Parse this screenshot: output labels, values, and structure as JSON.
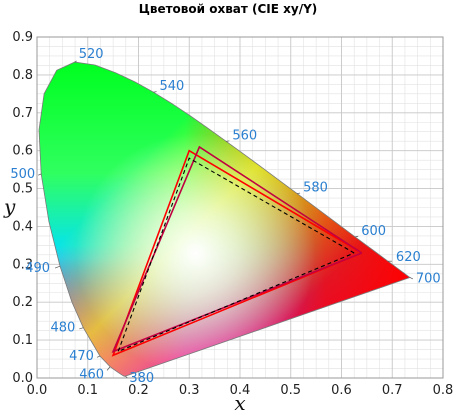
{
  "chart_data": {
    "type": "scatter",
    "title": "Цветовой охват (CIE xy/Y)",
    "xlabel": "x",
    "ylabel": "y",
    "xlim": [
      0.0,
      0.8
    ],
    "ylim": [
      0.0,
      0.9
    ],
    "grid": true,
    "x_ticks": [
      "0.0",
      "0.1",
      "0.2",
      "0.3",
      "0.4",
      "0.5",
      "0.6",
      "0.7",
      "0.8"
    ],
    "y_ticks": [
      "0.0",
      "0.1",
      "0.2",
      "0.3",
      "0.4",
      "0.5",
      "0.6",
      "0.7",
      "0.8",
      "0.9"
    ],
    "spectral_locus": {
      "x": [
        0.1741,
        0.1738,
        0.1736,
        0.1733,
        0.1726,
        0.1714,
        0.1689,
        0.1644,
        0.1566,
        0.144,
        0.1241,
        0.0913,
        0.0687,
        0.0454,
        0.0235,
        0.0082,
        0.0039,
        0.0139,
        0.0389,
        0.0743,
        0.1142,
        0.1547,
        0.1929,
        0.2296,
        0.2658,
        0.3016,
        0.3373,
        0.3731,
        0.4087,
        0.4441,
        0.4788,
        0.5125,
        0.5448,
        0.5752,
        0.6029,
        0.627,
        0.6482,
        0.6658,
        0.6801,
        0.6915,
        0.7006,
        0.7079,
        0.714,
        0.719,
        0.723,
        0.726,
        0.7347
      ],
      "y": [
        0.005,
        0.0049,
        0.0049,
        0.0048,
        0.0048,
        0.0051,
        0.0069,
        0.0109,
        0.0177,
        0.0297,
        0.0578,
        0.1327,
        0.2007,
        0.295,
        0.4127,
        0.5384,
        0.6548,
        0.7502,
        0.812,
        0.8338,
        0.8262,
        0.8059,
        0.7816,
        0.7543,
        0.7243,
        0.6923,
        0.6589,
        0.6245,
        0.5896,
        0.5547,
        0.5202,
        0.4866,
        0.4544,
        0.4242,
        0.3965,
        0.3725,
        0.3514,
        0.334,
        0.3197,
        0.3083,
        0.2993,
        0.292,
        0.2859,
        0.2809,
        0.277,
        0.274,
        0.2653
      ]
    },
    "wavelength_labels": [
      {
        "label": "380",
        "x": 0.1741,
        "y": 0.005
      },
      {
        "label": "460",
        "x": 0.144,
        "y": 0.0297
      },
      {
        "label": "470",
        "x": 0.1241,
        "y": 0.0578
      },
      {
        "label": "480",
        "x": 0.0913,
        "y": 0.1327
      },
      {
        "label": "490",
        "x": 0.0454,
        "y": 0.295
      },
      {
        "label": "500",
        "x": 0.0082,
        "y": 0.5384
      },
      {
        "label": "520",
        "x": 0.0743,
        "y": 0.8338
      },
      {
        "label": "540",
        "x": 0.2296,
        "y": 0.7543
      },
      {
        "label": "560",
        "x": 0.3731,
        "y": 0.6245
      },
      {
        "label": "580",
        "x": 0.5125,
        "y": 0.4866
      },
      {
        "label": "600",
        "x": 0.627,
        "y": 0.3725
      },
      {
        "label": "620",
        "x": 0.6915,
        "y": 0.3083
      },
      {
        "label": "700",
        "x": 0.7347,
        "y": 0.2653
      }
    ],
    "series": [
      {
        "values_x": [
          0.64,
          0.3,
          0.15,
          0.64
        ],
        "values_y": [
          0.33,
          0.6,
          0.06,
          0.33
        ],
        "color": "#ff0000",
        "style": "solid"
      },
      {
        "values_x": [
          0.64,
          0.32,
          0.15,
          0.64
        ],
        "values_y": [
          0.33,
          0.61,
          0.07,
          0.33
        ],
        "color": "#c00040",
        "style": "solid"
      },
      {
        "values_x": [
          0.625,
          0.3,
          0.16,
          0.625
        ],
        "values_y": [
          0.33,
          0.58,
          0.07,
          0.33
        ],
        "color": "#000000",
        "style": "dashed"
      }
    ],
    "gradient_colors": {
      "center": "#ffffff",
      "green": "#00ff20",
      "cyan": "#00e0ff",
      "blue": "#0010ff",
      "magenta": "#ff00c8",
      "red": "#ff0000",
      "yellow": "#ffff00"
    }
  }
}
